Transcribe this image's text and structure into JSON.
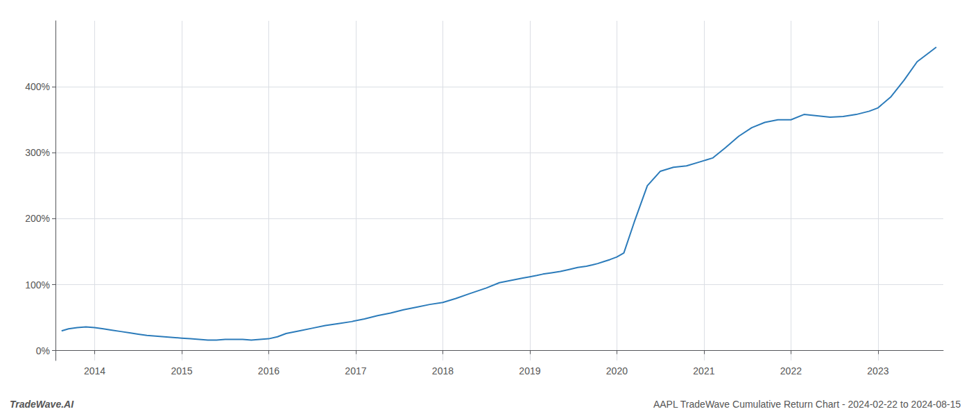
{
  "chart_data": {
    "type": "line",
    "x": [
      2013.62,
      2013.7,
      2013.8,
      2013.9,
      2014.0,
      2014.1,
      2014.2,
      2014.3,
      2014.4,
      2014.5,
      2014.6,
      2014.7,
      2014.8,
      2014.9,
      2015.0,
      2015.1,
      2015.2,
      2015.3,
      2015.4,
      2015.5,
      2015.6,
      2015.7,
      2015.8,
      2015.9,
      2016.0,
      2016.1,
      2016.2,
      2016.35,
      2016.5,
      2016.65,
      2016.8,
      2016.95,
      2017.1,
      2017.25,
      2017.4,
      2017.55,
      2017.7,
      2017.85,
      2018.0,
      2018.15,
      2018.3,
      2018.5,
      2018.65,
      2018.8,
      2018.92,
      2019.0,
      2019.08,
      2019.15,
      2019.25,
      2019.35,
      2019.45,
      2019.55,
      2019.65,
      2019.72,
      2019.78,
      2019.85,
      2019.92,
      2020.0,
      2020.08,
      2020.2,
      2020.35,
      2020.5,
      2020.65,
      2020.8,
      2020.95,
      2021.1,
      2021.25,
      2021.4,
      2021.55,
      2021.7,
      2021.85,
      2022.0,
      2022.15,
      2022.3,
      2022.45,
      2022.6,
      2022.75,
      2022.9,
      2023.0,
      2023.15,
      2023.3,
      2023.45,
      2023.6,
      2023.67
    ],
    "values": [
      30,
      33,
      35,
      36,
      35,
      33,
      31,
      29,
      27,
      25,
      23,
      22,
      21,
      20,
      19,
      18,
      17,
      16,
      16,
      17,
      17,
      17,
      16,
      17,
      18,
      21,
      26,
      30,
      34,
      38,
      41,
      44,
      48,
      53,
      57,
      62,
      66,
      70,
      73,
      79,
      86,
      95,
      103,
      107,
      110,
      112,
      114,
      116,
      118,
      120,
      123,
      126,
      128,
      130,
      132,
      135,
      138,
      142,
      148,
      195,
      250,
      272,
      278,
      280,
      286,
      292,
      308,
      325,
      338,
      346,
      350,
      350,
      358,
      356,
      354,
      355,
      358,
      363,
      368,
      385,
      410,
      438,
      453,
      460
    ],
    "color": "#2b7bba",
    "xlim": [
      2013.55,
      2023.75
    ],
    "xticks": [
      2014,
      2015,
      2016,
      2017,
      2018,
      2019,
      2020,
      2021,
      2022,
      2023
    ],
    "ylim": [
      -15,
      500
    ],
    "yticks": [
      {
        "value": 0,
        "label": "0%"
      },
      {
        "value": 100,
        "label": "100%"
      },
      {
        "value": 200,
        "label": "200%"
      },
      {
        "value": 300,
        "label": "300%"
      },
      {
        "value": 400,
        "label": "400%"
      }
    ],
    "grid": true,
    "annotations": [
      "TradeWave.AI",
      "AAPL TradeWave Cumulative Return Chart - 2024-02-22 to 2024-08-15"
    ]
  }
}
